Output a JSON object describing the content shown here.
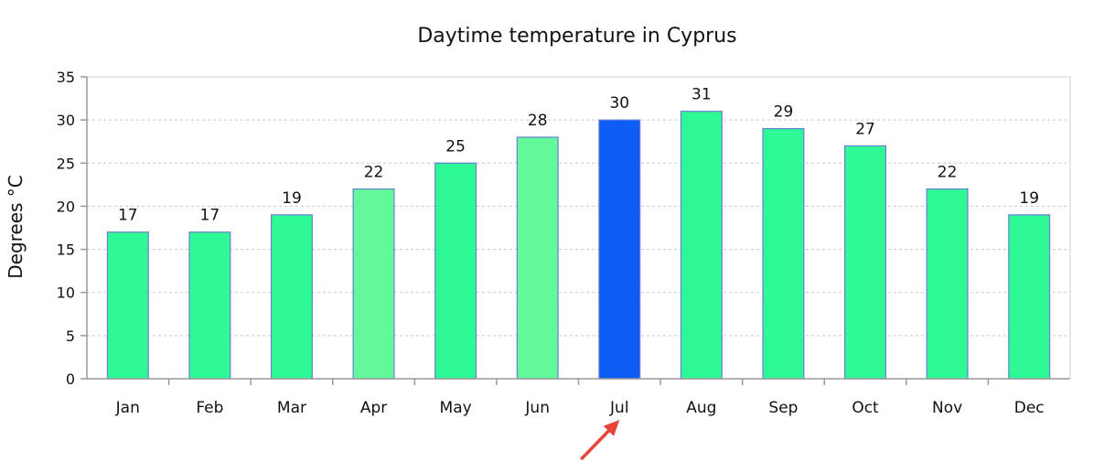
{
  "chart_data": {
    "type": "bar",
    "title": "Daytime temperature in Cyprus",
    "ylabel": "Degrees °C",
    "xlabel": "",
    "categories": [
      "Jan",
      "Feb",
      "Mar",
      "Apr",
      "May",
      "Jun",
      "Jul",
      "Aug",
      "Sep",
      "Oct",
      "Nov",
      "Dec"
    ],
    "values": [
      17,
      17,
      19,
      22,
      25,
      28,
      30,
      31,
      29,
      27,
      22,
      19
    ],
    "ylim": [
      0,
      35
    ],
    "yticks": [
      0,
      5,
      10,
      15,
      20,
      25,
      30,
      35
    ],
    "grid": true,
    "legend": "none",
    "colors": {
      "default": "#2dfa96",
      "light": "#62f99a",
      "highlight": "#0d5cf5",
      "arrow": "#e8443a"
    },
    "bar_colors": [
      "#2dfa96",
      "#2dfa96",
      "#2dfa96",
      "#62f99a",
      "#2dfa96",
      "#62f99a",
      "#0d5cf5",
      "#2dfa96",
      "#2dfa96",
      "#2dfa96",
      "#2dfa96",
      "#2dfa96"
    ],
    "highlighted_category": "Jul",
    "annotation_icon": "red-arrow-icon"
  }
}
